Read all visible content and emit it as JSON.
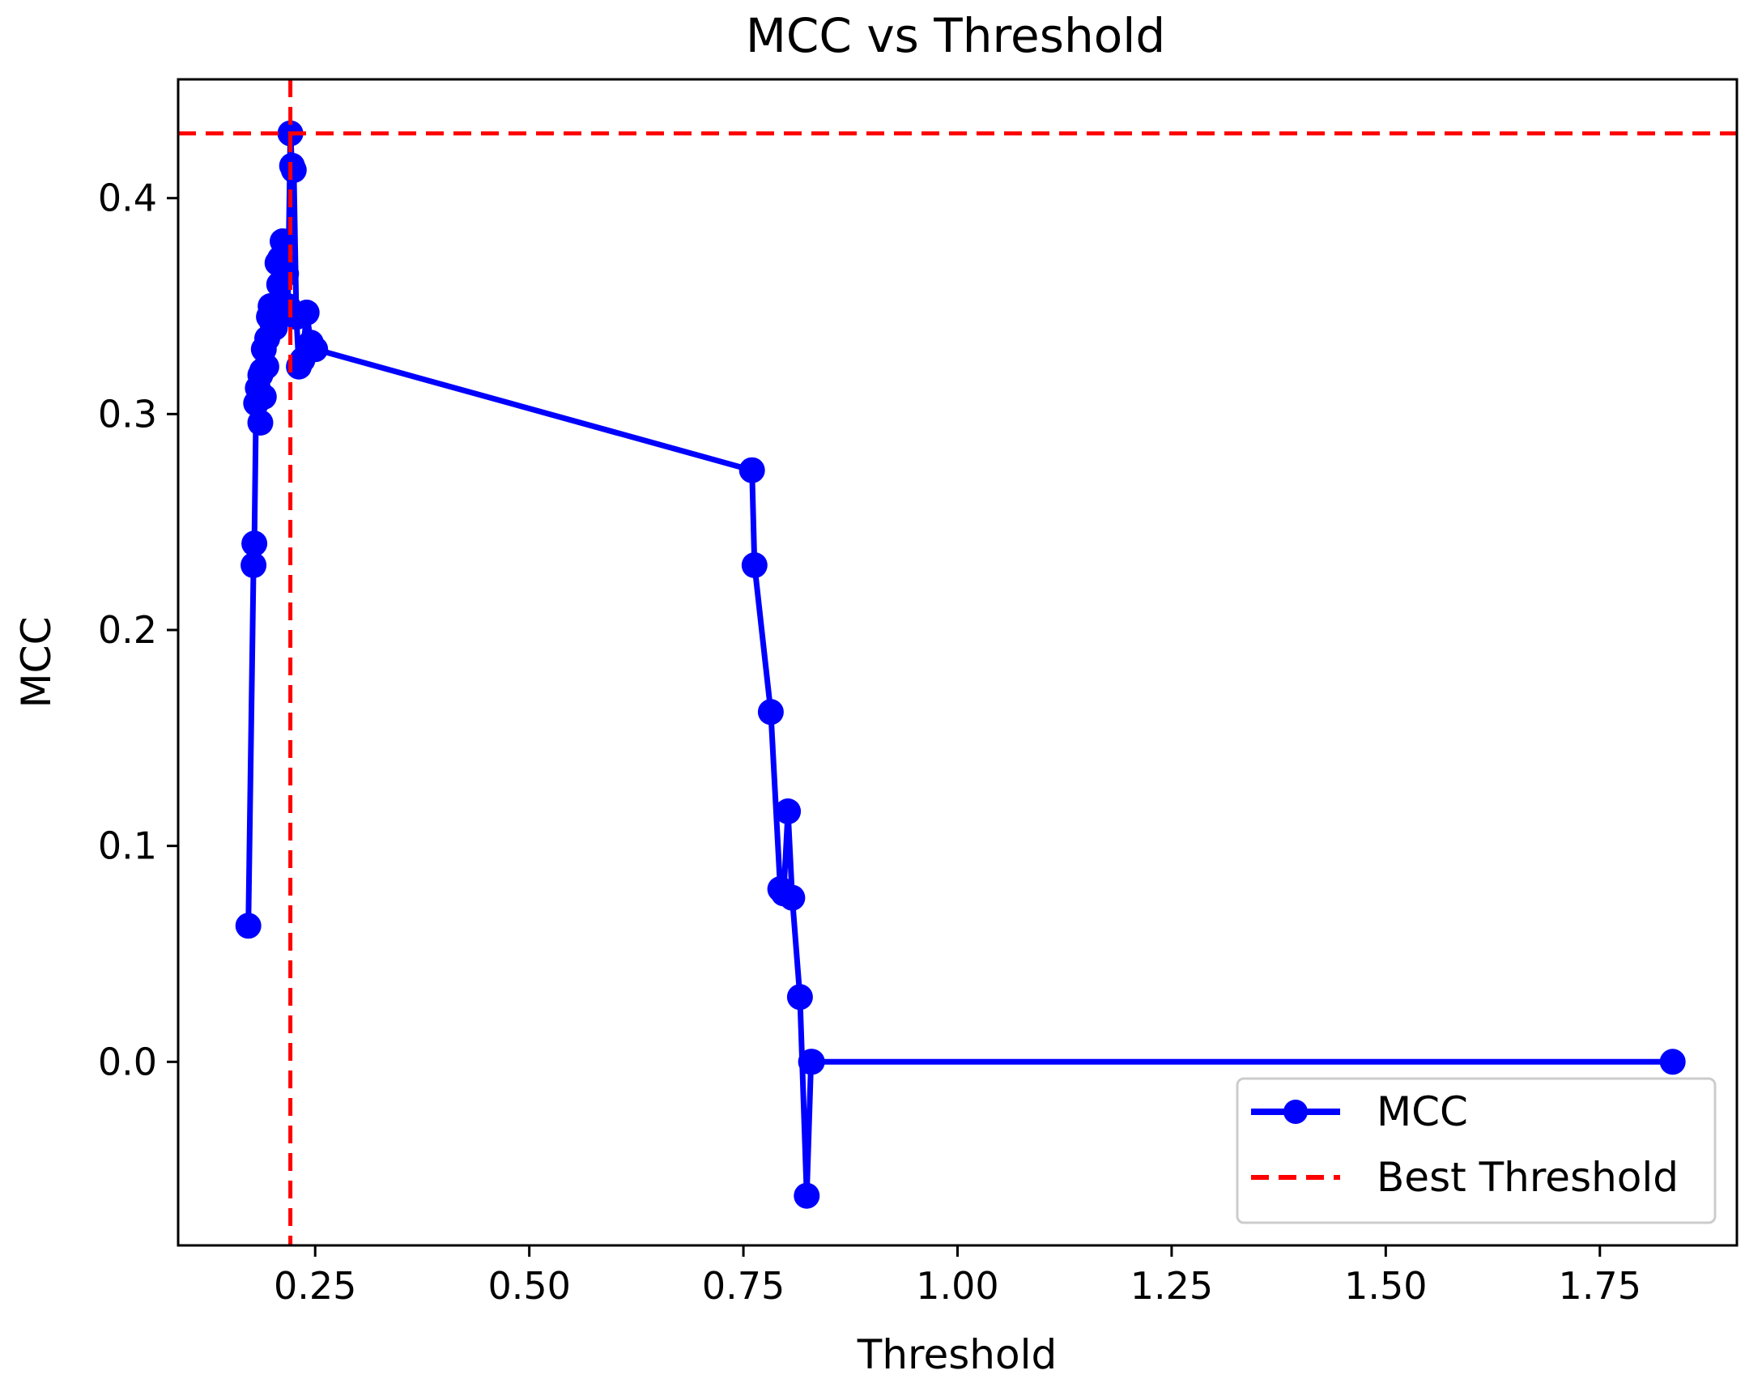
{
  "chart_data": {
    "type": "line",
    "title": "MCC vs Threshold",
    "xlabel": "Threshold",
    "ylabel": "MCC",
    "xlim": [
      0.09,
      1.91
    ],
    "ylim": [
      -0.085,
      0.455
    ],
    "x_ticks": [
      0.25,
      0.5,
      0.75,
      1.0,
      1.25,
      1.5,
      1.75
    ],
    "x_tick_labels": [
      "0.25",
      "0.50",
      "0.75",
      "1.00",
      "1.25",
      "1.50",
      "1.75"
    ],
    "y_ticks": [
      0.0,
      0.1,
      0.2,
      0.3,
      0.4
    ],
    "y_tick_labels": [
      "0.0",
      "0.1",
      "0.2",
      "0.3",
      "0.4"
    ],
    "grid": false,
    "legend_position": "lower-right",
    "series": [
      {
        "name": "MCC",
        "color": "#0000ff",
        "marker": "circle",
        "x": [
          0.172,
          0.178,
          0.179,
          0.181,
          0.183,
          0.186,
          0.186,
          0.188,
          0.19,
          0.19,
          0.193,
          0.194,
          0.196,
          0.198,
          0.2,
          0.203,
          0.206,
          0.208,
          0.209,
          0.212,
          0.216,
          0.218,
          0.221,
          0.223,
          0.225,
          0.228,
          0.231,
          0.235,
          0.24,
          0.245,
          0.25,
          0.76,
          0.763,
          0.782,
          0.793,
          0.797,
          0.802,
          0.807,
          0.816,
          0.824,
          0.829,
          0.83,
          1.835
        ],
        "y": [
          0.063,
          0.23,
          0.24,
          0.305,
          0.312,
          0.296,
          0.318,
          0.32,
          0.308,
          0.33,
          0.322,
          0.335,
          0.345,
          0.35,
          0.342,
          0.34,
          0.37,
          0.36,
          0.372,
          0.38,
          0.365,
          0.35,
          0.43,
          0.415,
          0.413,
          0.345,
          0.322,
          0.325,
          0.347,
          0.333,
          0.33,
          0.274,
          0.23,
          0.162,
          0.08,
          0.078,
          0.116,
          0.076,
          0.03,
          -0.062,
          0.0,
          0.0,
          0.0
        ]
      },
      {
        "name": "Best Threshold",
        "color": "#ff0000",
        "style": "dashed",
        "best_threshold": 0.221,
        "best_mcc": 0.43
      }
    ]
  }
}
